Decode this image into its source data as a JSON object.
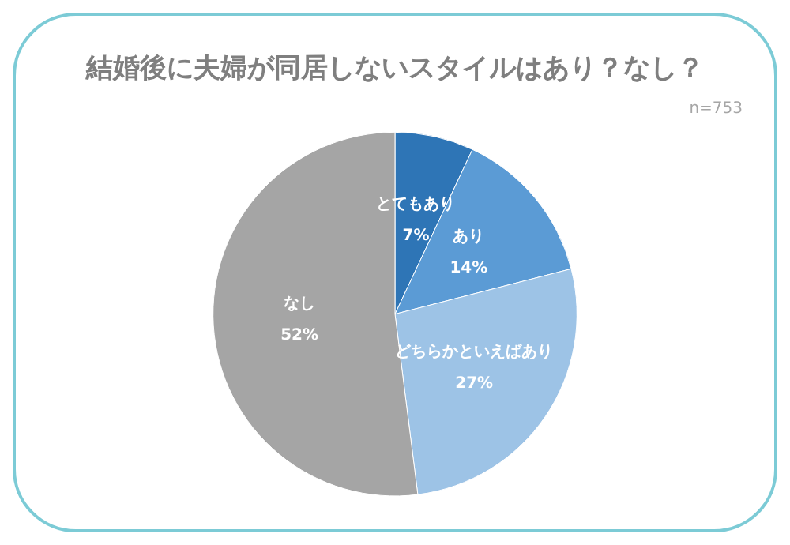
{
  "chart_data": {
    "type": "pie",
    "title": "結婚後に夫婦が同居しないスタイルはあり？なし？",
    "annotations": [
      "n=753"
    ],
    "categories": [
      "とてもあり",
      "あり",
      "どちらかといえばあり",
      "なし"
    ],
    "values": [
      7,
      14,
      27,
      52
    ],
    "colors": [
      "#2e75b6",
      "#5b9bd5",
      "#9dc3e6",
      "#a5a5a5"
    ],
    "value_labels": [
      "7%",
      "14%",
      "27%",
      "52%"
    ],
    "legend": false
  }
}
